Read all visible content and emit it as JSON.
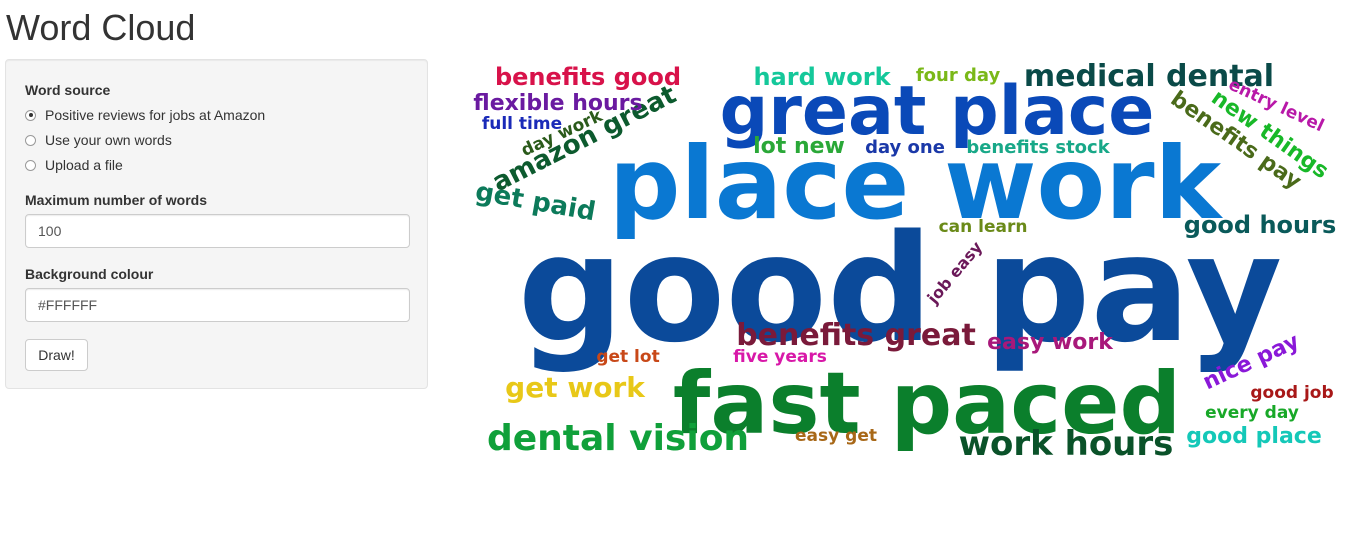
{
  "header": {
    "title": "Word Cloud"
  },
  "sidebar": {
    "word_source_label": "Word source",
    "sources": [
      {
        "label": "Positive reviews for jobs at Amazon",
        "checked": true
      },
      {
        "label": "Use your own words",
        "checked": false
      },
      {
        "label": "Upload a file",
        "checked": false
      }
    ],
    "max_words_label": "Maximum number of words",
    "max_words_value": "100",
    "bg_colour_label": "Background colour",
    "bg_colour_value": "#FFFFFF",
    "draw_label": "Draw!"
  },
  "cloud": {
    "words": [
      {
        "text": "good pay",
        "color": "#0b4a9a"
      },
      {
        "text": "place work",
        "color": "#0a78d2"
      },
      {
        "text": "fast paced",
        "color": "#0b7f2c"
      },
      {
        "text": "great place",
        "color": "#0a49b8"
      },
      {
        "text": "work hours",
        "color": "#0a5229"
      },
      {
        "text": "dental vision",
        "color": "#10a03a"
      },
      {
        "text": "medical dental",
        "color": "#0a4a48"
      },
      {
        "text": "benefits great",
        "color": "#7a1a3a"
      },
      {
        "text": "amazon great",
        "color": "#0c5a2e"
      },
      {
        "text": "get paid",
        "color": "#0c7a5a"
      },
      {
        "text": "benefits good",
        "color": "#d8124a"
      },
      {
        "text": "flexible hours",
        "color": "#6a1aa0"
      },
      {
        "text": "hard work",
        "color": "#14c89a"
      },
      {
        "text": "benefits pay",
        "color": "#4a6a1a"
      },
      {
        "text": "new things",
        "color": "#18b828"
      },
      {
        "text": "good hours",
        "color": "#0a5a5a"
      },
      {
        "text": "get work",
        "color": "#e8c818"
      },
      {
        "text": "easy work",
        "color": "#a8187a"
      },
      {
        "text": "good place",
        "color": "#14c8b8"
      },
      {
        "text": "nice pay",
        "color": "#8a18d8"
      },
      {
        "text": "lot new",
        "color": "#2aa838"
      },
      {
        "text": "four day",
        "color": "#7ab818"
      },
      {
        "text": "full time",
        "color": "#1a2ab8"
      },
      {
        "text": "day work",
        "color": "#2a5a1a"
      },
      {
        "text": "entry level",
        "color": "#b818a8"
      },
      {
        "text": "day one",
        "color": "#1a38a8"
      },
      {
        "text": "benefits stock",
        "color": "#18a888"
      },
      {
        "text": "can learn",
        "color": "#6a8a18"
      },
      {
        "text": "job easy",
        "color": "#6a1858"
      },
      {
        "text": "get lot",
        "color": "#c84818"
      },
      {
        "text": "five years",
        "color": "#d818a8"
      },
      {
        "text": "good job",
        "color": "#a81818"
      },
      {
        "text": "every day",
        "color": "#18a828"
      },
      {
        "text": "easy get",
        "color": "#a86818"
      }
    ]
  }
}
